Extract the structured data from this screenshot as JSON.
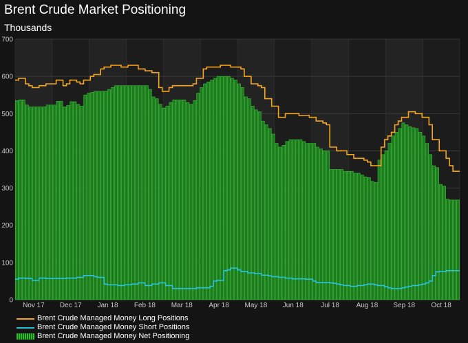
{
  "title": "Brent Crude Market Positioning",
  "subtitle": "Thousands",
  "colors": {
    "background": "#141414",
    "plot_band_dark": "#1c1c1c",
    "plot_band_light": "#232323",
    "grid": "#3a3a3a",
    "long": "#f5a623",
    "short": "#2bc3d9",
    "net_fill": "#1f7a1f",
    "net_edge": "#39c739"
  },
  "legend": [
    {
      "label": "Brent Crude Managed Money Long Positions",
      "swatch": "line",
      "color": "#f5a623"
    },
    {
      "label": "Brent Crude Managed Money Short Positions",
      "swatch": "line",
      "color": "#2bc3d9"
    },
    {
      "label": "Brent Crude Managed Money Net Positioning",
      "swatch": "bars",
      "color": "#2bbd2b"
    }
  ],
  "chart_data": {
    "type": "bar",
    "title": "Brent Crude Market Positioning",
    "subtitle": "Thousands",
    "xlabel": "",
    "ylabel": "",
    "ylim": [
      0,
      700
    ],
    "yticks": [
      0,
      100,
      200,
      300,
      400,
      500,
      600,
      700
    ],
    "x_tick_labels": [
      "Nov 17",
      "Dec 17",
      "Jan 18",
      "Feb 18",
      "Mar 18",
      "Apr 18",
      "May 18",
      "Jun 18",
      "Jul 18",
      "Aug 18",
      "Sep 18",
      "Oct 18"
    ],
    "grid": true,
    "legend_position": "bottom-left",
    "series": [
      {
        "name": "Brent Crude Managed Money Long Positions",
        "kind": "step-line",
        "values": [
          590,
          595,
          595,
          580,
          575,
          570,
          570,
          575,
          575,
          580,
          580,
          580,
          590,
          590,
          575,
          580,
          590,
          590,
          585,
          580,
          590,
          590,
          600,
          605,
          605,
          620,
          625,
          625,
          630,
          630,
          630,
          625,
          625,
          630,
          630,
          630,
          620,
          620,
          615,
          615,
          610,
          610,
          570,
          560,
          560,
          570,
          575,
          575,
          575,
          575,
          575,
          575,
          580,
          595,
          595,
          620,
          625,
          625,
          625,
          625,
          630,
          630,
          630,
          625,
          625,
          625,
          620,
          600,
          600,
          580,
          580,
          575,
          570,
          540,
          540,
          520,
          520,
          490,
          490,
          500,
          500,
          500,
          500,
          495,
          495,
          495,
          490,
          490,
          480,
          480,
          475,
          470,
          410,
          410,
          400,
          400,
          400,
          390,
          390,
          380,
          380,
          380,
          375,
          370,
          360,
          360,
          360,
          410,
          430,
          440,
          450,
          470,
          480,
          490,
          490,
          505,
          505,
          500,
          500,
          490,
          490,
          470,
          430,
          430,
          400,
          400,
          380,
          360,
          345,
          345
        ]
      },
      {
        "name": "Brent Crude Managed Money Short Positions",
        "kind": "step-line",
        "values": [
          55,
          58,
          58,
          57,
          57,
          52,
          52,
          58,
          58,
          57,
          57,
          57,
          57,
          57,
          57,
          58,
          58,
          58,
          60,
          60,
          65,
          65,
          65,
          62,
          60,
          60,
          42,
          40,
          40,
          40,
          38,
          38,
          40,
          40,
          42,
          42,
          45,
          45,
          38,
          38,
          42,
          42,
          45,
          45,
          38,
          38,
          30,
          30,
          30,
          30,
          30,
          30,
          30,
          32,
          32,
          32,
          32,
          36,
          50,
          52,
          52,
          78,
          80,
          85,
          85,
          80,
          76,
          76,
          72,
          72,
          70,
          70,
          66,
          66,
          64,
          62,
          62,
          60,
          60,
          58,
          58,
          56,
          56,
          56,
          56,
          55,
          55,
          50,
          46,
          46,
          46,
          46,
          45,
          44,
          42,
          40,
          38,
          38,
          36,
          36,
          38,
          38,
          40,
          42,
          42,
          40,
          38,
          38,
          35,
          32,
          30,
          30,
          30,
          32,
          34,
          36,
          38,
          38,
          40,
          42,
          45,
          50,
          65,
          75,
          76,
          76,
          78,
          78,
          78,
          78
        ]
      },
      {
        "name": "Brent Crude Managed Money Net Positioning",
        "kind": "bars",
        "values": [
          535,
          537,
          537,
          523,
          518,
          518,
          518,
          518,
          518,
          523,
          523,
          523,
          533,
          533,
          518,
          522,
          532,
          532,
          525,
          520,
          550,
          555,
          557,
          560,
          560,
          560,
          560,
          565,
          570,
          575,
          575,
          575,
          575,
          575,
          575,
          575,
          575,
          575,
          575,
          565,
          545,
          540,
          525,
          515,
          520,
          530,
          537,
          537,
          537,
          537,
          530,
          525,
          535,
          555,
          570,
          580,
          585,
          590,
          595,
          600,
          600,
          600,
          600,
          595,
          590,
          580,
          570,
          545,
          540,
          520,
          510,
          505,
          480,
          470,
          460,
          445,
          420,
          410,
          415,
          425,
          430,
          430,
          430,
          430,
          425,
          420,
          420,
          420,
          410,
          405,
          400,
          400,
          350,
          350,
          350,
          350,
          345,
          345,
          345,
          340,
          340,
          335,
          330,
          328,
          318,
          315,
          375,
          390,
          400,
          420,
          440,
          450,
          460,
          475,
          470,
          465,
          462,
          460,
          450,
          440,
          420,
          390,
          360,
          355,
          310,
          305,
          270,
          268,
          268,
          268
        ]
      }
    ]
  }
}
